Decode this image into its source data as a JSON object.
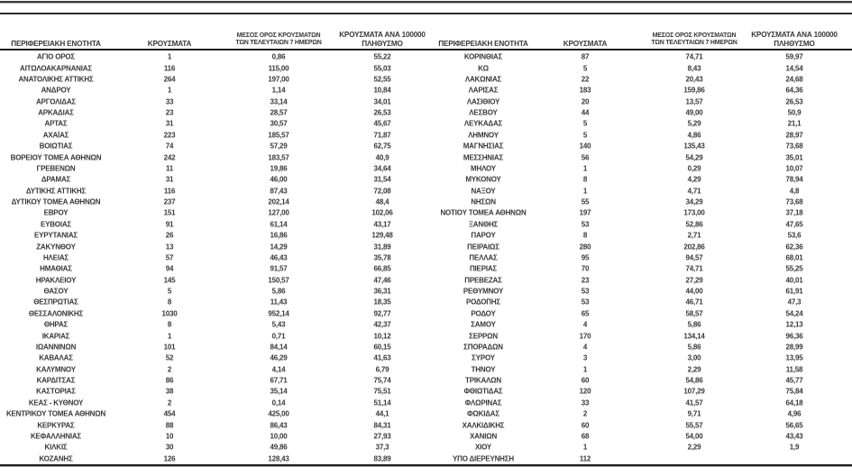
{
  "document": {
    "type": "regional-covid-cases-table",
    "language": "el"
  },
  "colors": {
    "text": "#383838",
    "rule_dark": "#1e1e1e",
    "rule_gray": "#a6a6a6",
    "background": "#ffffff"
  },
  "table": {
    "headers": {
      "region": "ΠΕΡΙΦΕΡΕΙΑΚΗ ΕΝΟΤΗΤΑ",
      "cases": "ΚΡΟΥΣΜΑΤΑ",
      "avg7_line1": "ΜΕΣΟΣ ΟΡΟΣ ΚΡΟΥΣΜΑΤΩΝ",
      "avg7_line2": "ΤΩΝ ΤΕΛΕΥΤΑΙΩΝ 7 ΗΜΕΡΩΝ",
      "per100k_line1": "ΚΡΟΥΣΜΑΤΑ ΑΝΑ 100000",
      "per100k_line2": "ΠΛΗΘΥΣΜΟ"
    },
    "left_rows": [
      [
        "ΑΓΙΟ ΟΡΟΣ",
        "1",
        "0,86",
        "55,22"
      ],
      [
        "ΑΙΤΩΛΟΑΚΑΡΝΑΝΙΑΣ",
        "116",
        "115,00",
        "55,03"
      ],
      [
        "ΑΝΑΤΟΛΙΚΗΣ ΑΤΤΙΚΗΣ",
        "264",
        "197,00",
        "52,55"
      ],
      [
        "ΑΝΔΡΟΥ",
        "1",
        "1,14",
        "10,84"
      ],
      [
        "ΑΡΓΟΛΙΔΑΣ",
        "33",
        "33,14",
        "34,01"
      ],
      [
        "ΑΡΚΑΔΙΑΣ",
        "23",
        "28,57",
        "26,53"
      ],
      [
        "ΑΡΤΑΣ",
        "31",
        "30,57",
        "45,67"
      ],
      [
        "ΑΧΑΪΑΣ",
        "223",
        "185,57",
        "71,87"
      ],
      [
        "ΒΟΙΩΤΙΑΣ",
        "74",
        "57,29",
        "62,75"
      ],
      [
        "ΒΟΡΕΙΟΥ ΤΟΜΕΑ ΑΘΗΝΩΝ",
        "242",
        "183,57",
        "40,9"
      ],
      [
        "ΓΡΕΒΕΝΩΝ",
        "11",
        "19,86",
        "34,64"
      ],
      [
        "ΔΡΑΜΑΣ",
        "31",
        "46,00",
        "31,54"
      ],
      [
        "ΔΥΤΙΚΗΣ ΑΤΤΙΚΗΣ",
        "116",
        "87,43",
        "72,08"
      ],
      [
        "ΔΥΤΙΚΟΥ ΤΟΜΕΑ ΑΘΗΝΩΝ",
        "237",
        "202,14",
        "48,4"
      ],
      [
        "ΕΒΡΟΥ",
        "151",
        "127,00",
        "102,06"
      ],
      [
        "ΕΥΒΟΙΑΣ",
        "91",
        "61,14",
        "43,17"
      ],
      [
        "ΕΥΡΥΤΑΝΙΑΣ",
        "26",
        "16,86",
        "129,48"
      ],
      [
        "ΖΑΚΥΝΘΟΥ",
        "13",
        "14,29",
        "31,89"
      ],
      [
        "ΗΛΕΙΑΣ",
        "57",
        "46,43",
        "35,78"
      ],
      [
        "ΗΜΑΘΙΑΣ",
        "94",
        "91,57",
        "66,85"
      ],
      [
        "ΗΡΑΚΛΕΙΟΥ",
        "145",
        "150,57",
        "47,46"
      ],
      [
        "ΘΑΣΟΥ",
        "5",
        "5,86",
        "36,31"
      ],
      [
        "ΘΕΣΠΡΩΤΙΑΣ",
        "8",
        "11,43",
        "18,35"
      ],
      [
        "ΘΕΣΣΑΛΟΝΙΚΗΣ",
        "1030",
        "952,14",
        "92,77"
      ],
      [
        "ΘΗΡΑΣ",
        "8",
        "5,43",
        "42,37"
      ],
      [
        "ΙΚΑΡΙΑΣ",
        "1",
        "0,71",
        "10,12"
      ],
      [
        "ΙΩΑΝΝΙΝΩΝ",
        "101",
        "84,14",
        "60,15"
      ],
      [
        "ΚΑΒΑΛΑΣ",
        "52",
        "46,29",
        "41,63"
      ],
      [
        "ΚΑΛΥΜΝΟΥ",
        "2",
        "4,14",
        "6,79"
      ],
      [
        "ΚΑΡΔΙΤΣΑΣ",
        "86",
        "67,71",
        "75,74"
      ],
      [
        "ΚΑΣΤΟΡΙΑΣ",
        "38",
        "35,14",
        "75,51"
      ],
      [
        "ΚΕΑΣ - ΚΥΘΝΟΥ",
        "2",
        "0,14",
        "51,14"
      ],
      [
        "ΚΕΝΤΡΙΚΟΥ ΤΟΜΕΑ ΑΘΗΝΩΝ",
        "454",
        "425,00",
        "44,1"
      ],
      [
        "ΚΕΡΚΥΡΑΣ",
        "88",
        "86,43",
        "84,31"
      ],
      [
        "ΚΕΦΑΛΛΗΝΙΑΣ",
        "10",
        "10,00",
        "27,93"
      ],
      [
        "ΚΙΛΚΙΣ",
        "30",
        "49,86",
        "37,3"
      ],
      [
        "ΚΟΖΑΝΗΣ",
        "126",
        "128,43",
        "83,89"
      ]
    ],
    "right_rows": [
      [
        "ΚΟΡΙΝΘΙΑΣ",
        "87",
        "74,71",
        "59,97"
      ],
      [
        "ΚΩ",
        "5",
        "8,43",
        "14,54"
      ],
      [
        "ΛΑΚΩΝΙΑΣ",
        "22",
        "20,43",
        "24,68"
      ],
      [
        "ΛΑΡΙΣΑΣ",
        "183",
        "159,86",
        "64,36"
      ],
      [
        "ΛΑΣΙΘΙΟΥ",
        "20",
        "13,57",
        "26,53"
      ],
      [
        "ΛΕΣΒΟΥ",
        "44",
        "49,00",
        "50,9"
      ],
      [
        "ΛΕΥΚΑΔΑΣ",
        "5",
        "5,29",
        "21,1"
      ],
      [
        "ΛΗΜΝΟΥ",
        "5",
        "4,86",
        "28,97"
      ],
      [
        "ΜΑΓΝΗΣΙΑΣ",
        "140",
        "135,43",
        "73,68"
      ],
      [
        "ΜΕΣΣΗΝΙΑΣ",
        "56",
        "54,29",
        "35,01"
      ],
      [
        "ΜΗΛΟΥ",
        "1",
        "0,29",
        "10,07"
      ],
      [
        "ΜΥΚΟΝΟΥ",
        "8",
        "4,29",
        "78,94"
      ],
      [
        "ΝΑΞΟΥ",
        "1",
        "4,71",
        "4,8"
      ],
      [
        "ΝΗΣΩΝ",
        "55",
        "34,29",
        "73,68"
      ],
      [
        "ΝΟΤΙΟΥ ΤΟΜΕΑ ΑΘΗΝΩΝ",
        "197",
        "173,00",
        "37,18"
      ],
      [
        "ΞΑΝΘΗΣ",
        "53",
        "52,86",
        "47,65"
      ],
      [
        "ΠΑΡΟΥ",
        "8",
        "2,71",
        "53,6"
      ],
      [
        "ΠΕΙΡΑΙΩΣ",
        "280",
        "202,86",
        "62,36"
      ],
      [
        "ΠΕΛΛΑΣ",
        "95",
        "94,57",
        "68,01"
      ],
      [
        "ΠΙΕΡΙΑΣ",
        "70",
        "74,71",
        "55,25"
      ],
      [
        "ΠΡΕΒΕΖΑΣ",
        "23",
        "27,29",
        "40,01"
      ],
      [
        "ΡΕΘΥΜΝΟΥ",
        "53",
        "44,00",
        "61,91"
      ],
      [
        "ΡΟΔΟΠΗΣ",
        "53",
        "46,71",
        "47,3"
      ],
      [
        "ΡΟΔΟΥ",
        "65",
        "58,57",
        "54,24"
      ],
      [
        "ΣΑΜΟΥ",
        "4",
        "5,86",
        "12,13"
      ],
      [
        "ΣΕΡΡΩΝ",
        "170",
        "134,14",
        "96,36"
      ],
      [
        "ΣΠΟΡΑΔΩΝ",
        "4",
        "5,86",
        "28,99"
      ],
      [
        "ΣΥΡΟΥ",
        "3",
        "3,00",
        "13,95"
      ],
      [
        "ΤΗΝΟΥ",
        "1",
        "2,29",
        "11,58"
      ],
      [
        "ΤΡΙΚΑΛΩΝ",
        "60",
        "54,86",
        "45,77"
      ],
      [
        "ΦΘΙΩΤΙΔΑΣ",
        "120",
        "107,29",
        "75,84"
      ],
      [
        "ΦΛΩΡΙΝΑΣ",
        "33",
        "41,57",
        "64,18"
      ],
      [
        "ΦΩΚΙΔΑΣ",
        "2",
        "9,71",
        "4,96"
      ],
      [
        "ΧΑΛΚΙΔΙΚΗΣ",
        "60",
        "55,57",
        "56,65"
      ],
      [
        "ΧΑΝΙΩΝ",
        "68",
        "54,00",
        "43,43"
      ],
      [
        "ΧΙΟΥ",
        "1",
        "2,29",
        "1,9"
      ],
      [
        "ΥΠΟ ΔΙΕΡΕΥΝΗΣΗ",
        "112",
        "",
        ""
      ]
    ]
  }
}
